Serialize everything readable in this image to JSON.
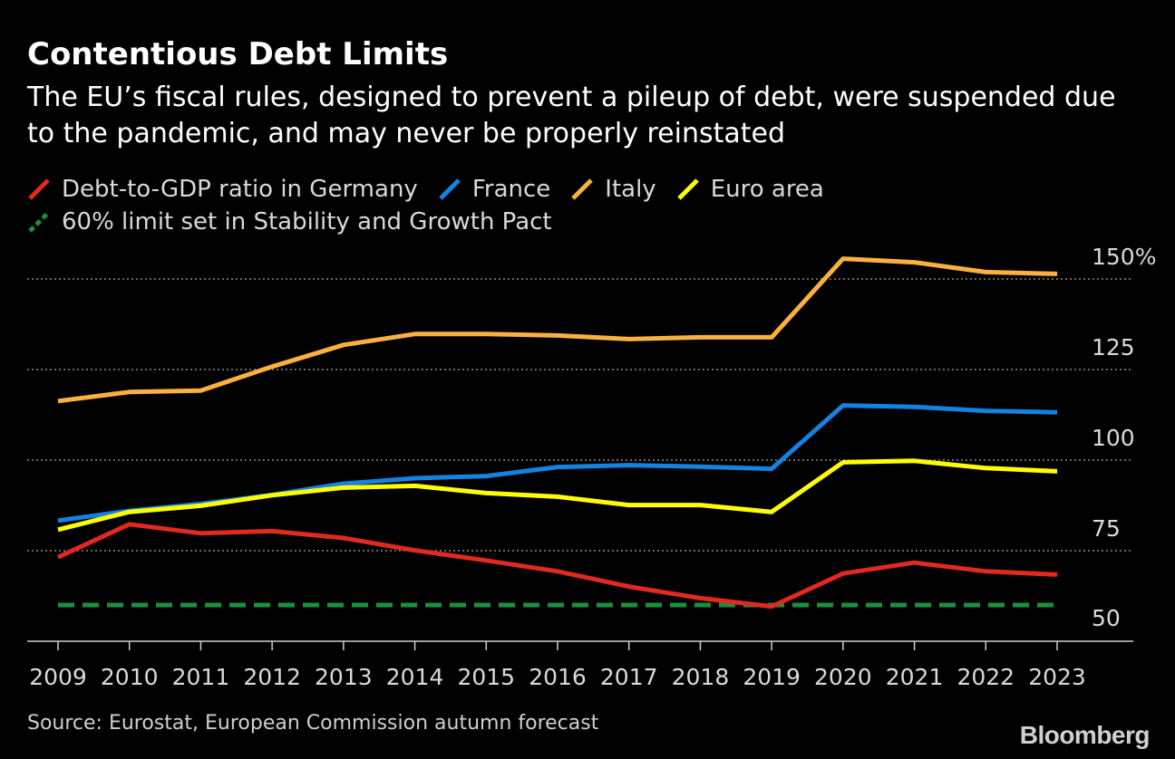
{
  "title": "Contentious Debt Limits",
  "subtitle": "The EU’s fiscal rules, designed to prevent a pileup of debt, were suspended due to the pandemic, and may never be properly reinstated",
  "legend": [
    {
      "label": "Debt-to-GDP ratio in Germany",
      "color": "#e0291f",
      "style": "solid"
    },
    {
      "label": "France",
      "color": "#1482e0",
      "style": "solid"
    },
    {
      "label": "Italy",
      "color": "#fbb040",
      "style": "solid"
    },
    {
      "label": "Euro area",
      "color": "#ffff00",
      "style": "solid"
    },
    {
      "label": "60% limit set in Stability and Growth Pact",
      "color": "#1a8f3c",
      "style": "dashed"
    }
  ],
  "source": "Source: Eurostat, European Commission autumn forecast",
  "brand": "Bloomberg",
  "chart_data": {
    "type": "line",
    "x": [
      "2009",
      "2010",
      "2011",
      "2012",
      "2013",
      "2014",
      "2015",
      "2016",
      "2017",
      "2018",
      "2019",
      "2020",
      "2021",
      "2022",
      "2023"
    ],
    "ylim": [
      50,
      157
    ],
    "yticks": [
      {
        "value": 150,
        "label": "150%"
      },
      {
        "value": 125,
        "label": "125"
      },
      {
        "value": 100,
        "label": "100"
      },
      {
        "value": 75,
        "label": "75"
      },
      {
        "value": 50,
        "label": "50"
      }
    ],
    "grid": true,
    "legend_position": "top-left",
    "series": [
      {
        "name": "Debt-to-GDP ratio in Germany",
        "color": "#e0291f",
        "values": [
          73.2,
          82.3,
          79.8,
          80.4,
          78.5,
          75.1,
          72.3,
          69.3,
          65.1,
          61.9,
          59.6,
          68.7,
          71.7,
          69.3,
          68.4
        ]
      },
      {
        "name": "France",
        "color": "#1482e0",
        "values": [
          83.3,
          86.0,
          87.9,
          90.4,
          93.5,
          95.0,
          95.6,
          98.1,
          98.6,
          98.2,
          97.6,
          115.1,
          114.7,
          113.6,
          113.2
        ]
      },
      {
        "name": "Italy",
        "color": "#fbb040",
        "values": [
          116.3,
          118.8,
          119.2,
          125.8,
          131.8,
          134.8,
          134.8,
          134.4,
          133.4,
          133.9,
          133.9,
          155.6,
          154.6,
          151.9,
          151.4
        ]
      },
      {
        "name": "Euro area",
        "color": "#ffff00",
        "values": [
          80.8,
          85.7,
          87.4,
          90.3,
          92.4,
          92.9,
          90.9,
          89.9,
          87.6,
          87.6,
          85.7,
          99.4,
          99.8,
          97.8,
          96.9
        ]
      },
      {
        "name": "60% limit set in Stability and Growth Pact",
        "color": "#1a8f3c",
        "dashed": true,
        "values": [
          60,
          60,
          60,
          60,
          60,
          60,
          60,
          60,
          60,
          60,
          60,
          60,
          60,
          60,
          60
        ]
      }
    ]
  }
}
